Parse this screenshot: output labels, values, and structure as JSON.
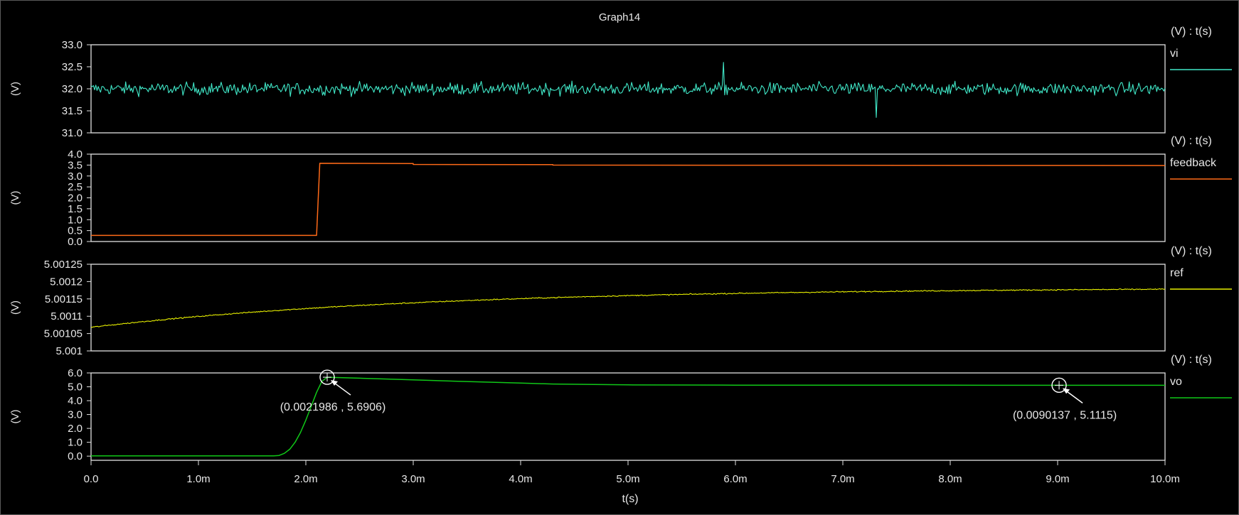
{
  "chart_data": {
    "type": "line",
    "title": "Graph14",
    "xlabel": "t(s)",
    "xlim": [
      0,
      0.01
    ],
    "xticks": [
      0,
      0.001,
      0.002,
      0.003,
      0.004,
      0.005,
      0.006,
      0.007,
      0.008,
      0.009,
      0.01
    ],
    "xtick_labels": [
      "0.0",
      "1.0m",
      "2.0m",
      "3.0m",
      "4.0m",
      "5.0m",
      "6.0m",
      "7.0m",
      "8.0m",
      "9.0m",
      "10.0m"
    ],
    "grid": false,
    "panels": [
      {
        "ylabel": "(V)",
        "legend_header": "(V) : t(s)",
        "series": [
          {
            "name": "vi",
            "color": "#40e8c8",
            "shape": "noise",
            "mean": 32.0,
            "noise": 0.18,
            "peak": 32.6,
            "trough": 31.35
          }
        ],
        "ylim": [
          31.0,
          33.0
        ],
        "yticks": [
          31.0,
          31.5,
          32.0,
          32.5,
          33.0
        ],
        "ytick_labels": [
          "31.0",
          "31.5",
          "32.0",
          "32.5",
          "33.0"
        ]
      },
      {
        "ylabel": "(V)",
        "legend_header": "(V) : t(s)",
        "series": [
          {
            "name": "feedback",
            "color": "#ff6a18",
            "shape": "step",
            "points": [
              [
                0,
                0.28
              ],
              [
                0.0021,
                0.28
              ],
              [
                0.00213,
                3.58
              ],
              [
                0.003,
                3.57
              ],
              [
                0.003,
                3.53
              ],
              [
                0.0043,
                3.52
              ],
              [
                0.0043,
                3.5
              ],
              [
                0.01,
                3.48
              ]
            ]
          }
        ],
        "ylim": [
          0.0,
          4.0
        ],
        "yticks": [
          0.0,
          0.5,
          1.0,
          1.5,
          2.0,
          2.5,
          3.0,
          3.5,
          4.0
        ],
        "ytick_labels": [
          "0.0",
          "0.5",
          "1.0",
          "1.5",
          "2.0",
          "2.5",
          "3.0",
          "3.5",
          "4.0"
        ]
      },
      {
        "ylabel": "(V)",
        "legend_header": "(V) : t(s)",
        "series": [
          {
            "name": "ref",
            "color": "#e8f000",
            "shape": "drift",
            "start": 5.001068,
            "end": 5.001178,
            "noise": 2.5e-06
          }
        ],
        "ylim": [
          5.001,
          5.00125
        ],
        "yticks": [
          5.001,
          5.00105,
          5.0011,
          5.00115,
          5.0012,
          5.00125
        ],
        "ytick_labels": [
          "5.001",
          "5.00105",
          "5.0011",
          "5.00115",
          "5.0012",
          "5.00125"
        ]
      },
      {
        "ylabel": "(V)",
        "legend_header": "(V) : t(s)",
        "series": [
          {
            "name": "vo",
            "color": "#10c818",
            "shape": "path",
            "points": [
              [
                0,
                0.02
              ],
              [
                0.0017,
                0.02
              ],
              [
                0.00175,
                0.05
              ],
              [
                0.0018,
                0.2
              ],
              [
                0.00185,
                0.5
              ],
              [
                0.0019,
                1.0
              ],
              [
                0.00195,
                1.7
              ],
              [
                0.002,
                2.6
              ],
              [
                0.00205,
                3.6
              ],
              [
                0.0021,
                4.6
              ],
              [
                0.00215,
                5.4
              ],
              [
                0.0022,
                5.69
              ],
              [
                0.0025,
                5.62
              ],
              [
                0.003,
                5.5
              ],
              [
                0.0035,
                5.38
              ],
              [
                0.004,
                5.27
              ],
              [
                0.0043,
                5.2
              ],
              [
                0.005,
                5.14
              ],
              [
                0.006,
                5.12
              ],
              [
                0.007,
                5.115
              ],
              [
                0.008,
                5.112
              ],
              [
                0.009,
                5.111
              ],
              [
                0.01,
                5.11
              ]
            ]
          }
        ],
        "ylim": [
          -0.3,
          6.0
        ],
        "yticks": [
          0.0,
          1.0,
          2.0,
          3.0,
          4.0,
          5.0,
          6.0
        ],
        "ytick_labels": [
          "0.0",
          "1.0",
          "2.0",
          "3.0",
          "4.0",
          "5.0",
          "6.0"
        ],
        "markers": [
          {
            "x": 0.0021986,
            "y": 5.6906,
            "label": "(0.0021986 , 5.6906)"
          },
          {
            "x": 0.0090137,
            "y": 5.1115,
            "label": "(0.0090137 , 5.1115)"
          }
        ]
      }
    ]
  }
}
